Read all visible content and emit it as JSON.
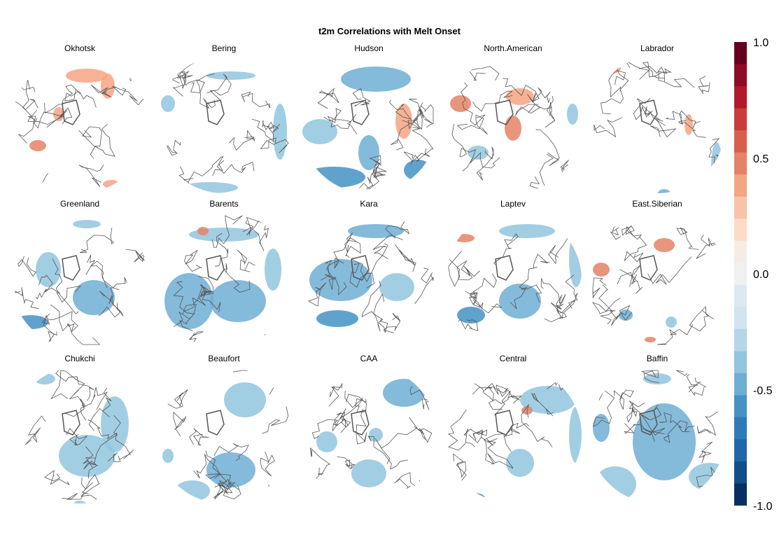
{
  "title": "t2m Correlations with Melt Onset",
  "panels": [
    {
      "name": "Okhotsk"
    },
    {
      "name": "Bering"
    },
    {
      "name": "Hudson"
    },
    {
      "name": "North.American"
    },
    {
      "name": "Labrador"
    },
    {
      "name": "Greenland"
    },
    {
      "name": "Barents"
    },
    {
      "name": "Kara"
    },
    {
      "name": "Laptev"
    },
    {
      "name": "East.Siberian"
    },
    {
      "name": "Chukchi"
    },
    {
      "name": "Beaufort"
    },
    {
      "name": "CAA"
    },
    {
      "name": "Central"
    },
    {
      "name": "Baffin"
    }
  ],
  "colorbar": {
    "min": -1.0,
    "max": 1.0,
    "tick_labels": [
      "1.0",
      "0.5",
      "0.0",
      "-0.5",
      "-1.0"
    ],
    "colors": [
      "#67001f",
      "#8e0a26",
      "#b2182b",
      "#c83c3a",
      "#d6604d",
      "#e58267",
      "#f4a582",
      "#f7c4aa",
      "#fddbc7",
      "#f6ece6",
      "#f0f0f0",
      "#dde9f1",
      "#d1e5f0",
      "#b5d6e8",
      "#92c5de",
      "#6eaed3",
      "#4393c3",
      "#2f7bb7",
      "#2166ac",
      "#144e8a",
      "#053061"
    ]
  }
}
